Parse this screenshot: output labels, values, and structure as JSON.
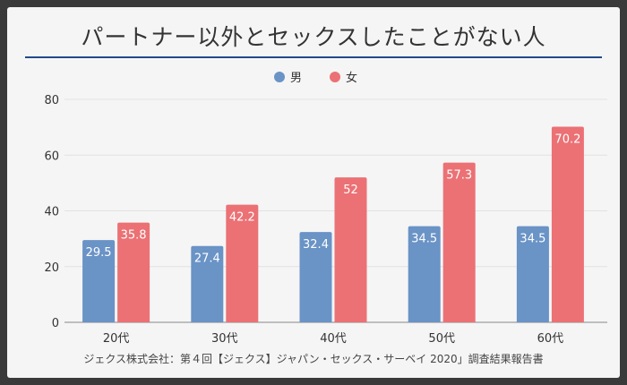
{
  "title": "パートナー以外とセックスしたことがない人",
  "source": "ジェクス株式会社：第４回【ジェクス】ジャパン・セックス・サーベイ 2020」調査結果報告書",
  "colors": {
    "male": "#6a93c6",
    "female": "#eb7175",
    "title_rule": "#1f4a8a"
  },
  "chart_data": {
    "type": "bar",
    "title": "パートナー以外とセックスしたことがない人",
    "categories": [
      "20代",
      "30代",
      "40代",
      "50代",
      "60代"
    ],
    "series": [
      {
        "name": "男",
        "color": "#6a93c6",
        "values": [
          29.5,
          27.4,
          32.4,
          34.5,
          34.5
        ]
      },
      {
        "name": "女",
        "color": "#eb7175",
        "values": [
          35.8,
          42.2,
          52,
          57.3,
          70.2
        ]
      }
    ],
    "ylim": [
      0,
      80
    ],
    "yticks": [
      0,
      20,
      40,
      60,
      80
    ],
    "grid": true,
    "legend": "top-center",
    "xlabel": "",
    "ylabel": ""
  }
}
